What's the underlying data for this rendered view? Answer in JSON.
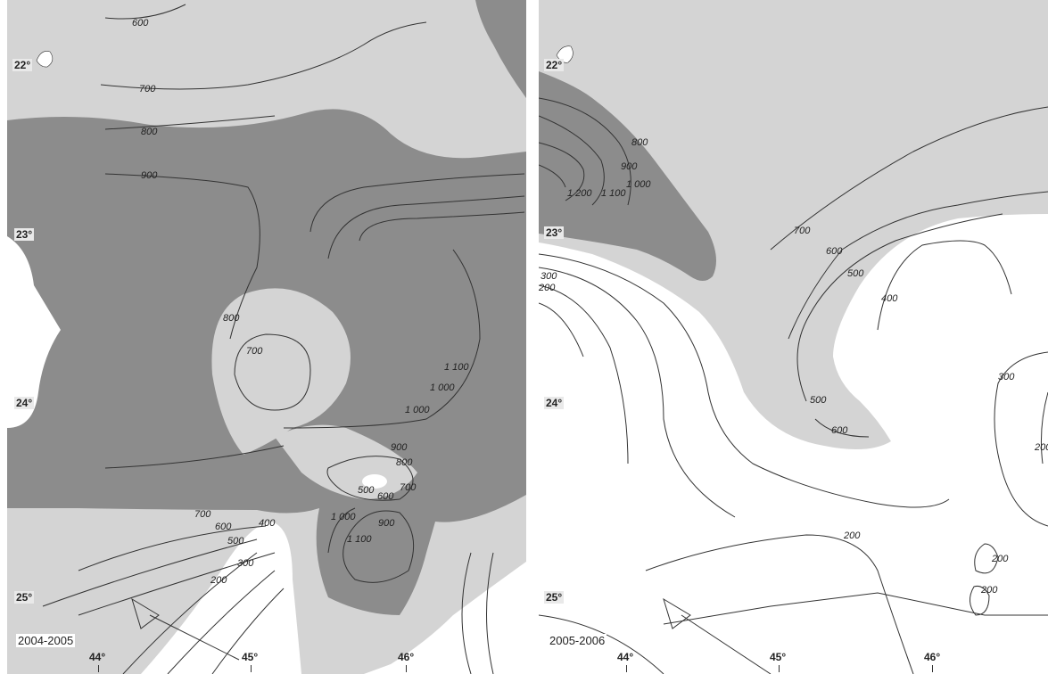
{
  "panels": [
    {
      "period": "2004-2005",
      "latitudes": [
        "22°",
        "23°",
        "24°",
        "25°"
      ],
      "longitudes": [
        "44°",
        "45°",
        "46°"
      ],
      "contour_labels": [
        "600",
        "700",
        "800",
        "900",
        "800",
        "700",
        "1 100",
        "1 000",
        "1 000",
        "900",
        "800",
        "700",
        "500",
        "600",
        "700",
        "600",
        "500",
        "400",
        "300",
        "200",
        "1 000",
        "900",
        "1 100"
      ]
    },
    {
      "period": "2005-2006",
      "latitudes": [
        "22°",
        "23°",
        "24°",
        "25°"
      ],
      "longitudes": [
        "44°",
        "45°",
        "46°"
      ],
      "contour_labels": [
        "800",
        "900",
        "1 000",
        "1 100",
        "1 200",
        "700",
        "600",
        "500",
        "400",
        "300",
        "200",
        "300",
        "200",
        "500",
        "600",
        "200",
        "200",
        "200"
      ]
    }
  ],
  "colors": {
    "dark_fill": "#8c8c8c",
    "light_fill": "#d4d4d4",
    "white_fill": "#ffffff",
    "contour_line": "#333333"
  }
}
